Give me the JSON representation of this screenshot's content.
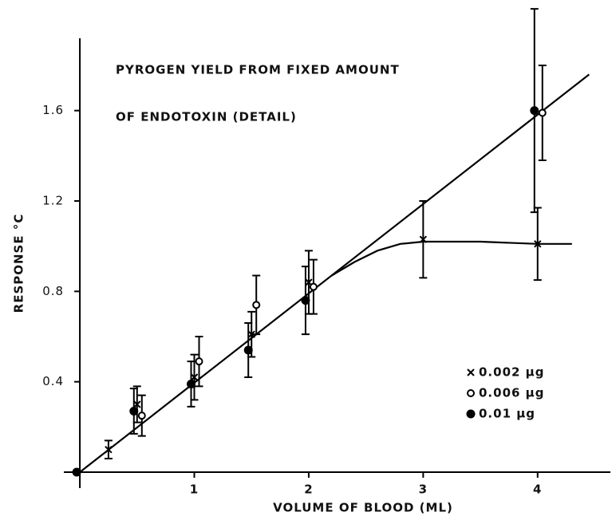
{
  "chart_data": {
    "type": "scatter",
    "title": [
      "PYROGEN YIELD FROM FIXED AMOUNT",
      "OF ENDOTOXIN (DETAIL)"
    ],
    "x_label": "VOLUME OF BLOOD (ML)",
    "y_label": "RESPONSE °C",
    "xlim": [
      -0.14,
      4.65
    ],
    "ylim": [
      0,
      1.92
    ],
    "xticks": [
      1,
      2,
      3,
      4
    ],
    "yticks": [
      0.4,
      0.8,
      1.2,
      1.6
    ],
    "legend": "lower right",
    "series": [
      {
        "name": "0.002 µg",
        "marker": "cross",
        "color": "#000000",
        "x": [
          0.25,
          0.5,
          1,
          1.5,
          2,
          3,
          4
        ],
        "values": [
          0.1,
          0.3,
          0.42,
          0.61,
          0.84,
          1.03,
          1.01
        ],
        "errors": [
          0.04,
          0.08,
          0.1,
          0.1,
          0.14,
          0.17,
          0.16
        ]
      },
      {
        "name": "0.006 µg",
        "marker": "open-circle",
        "color": "#000000",
        "x": [
          0.5,
          1,
          1.5,
          2,
          4
        ],
        "values": [
          0.25,
          0.49,
          0.74,
          0.82,
          1.59
        ],
        "errors": [
          0.09,
          0.11,
          0.13,
          0.12,
          0.21
        ]
      },
      {
        "name": "0.01 µg",
        "marker": "filled-circle",
        "color": "#000000",
        "x": [
          0,
          0.5,
          1,
          1.5,
          2,
          4
        ],
        "values": [
          0,
          0.27,
          0.39,
          0.54,
          0.76,
          1.6
        ],
        "errors": [
          0,
          0.1,
          0.1,
          0.12,
          0.15,
          0.45
        ]
      }
    ],
    "lines": [
      {
        "x": [
          0,
          4.45
        ],
        "values": [
          0,
          1.76
        ]
      },
      {
        "x": [
          2.2,
          2.4,
          2.6,
          2.8,
          3,
          3.5,
          4,
          4.3
        ],
        "values": [
          0.87,
          0.93,
          0.98,
          1.01,
          1.02,
          1.02,
          1.01,
          1.01
        ]
      }
    ]
  }
}
